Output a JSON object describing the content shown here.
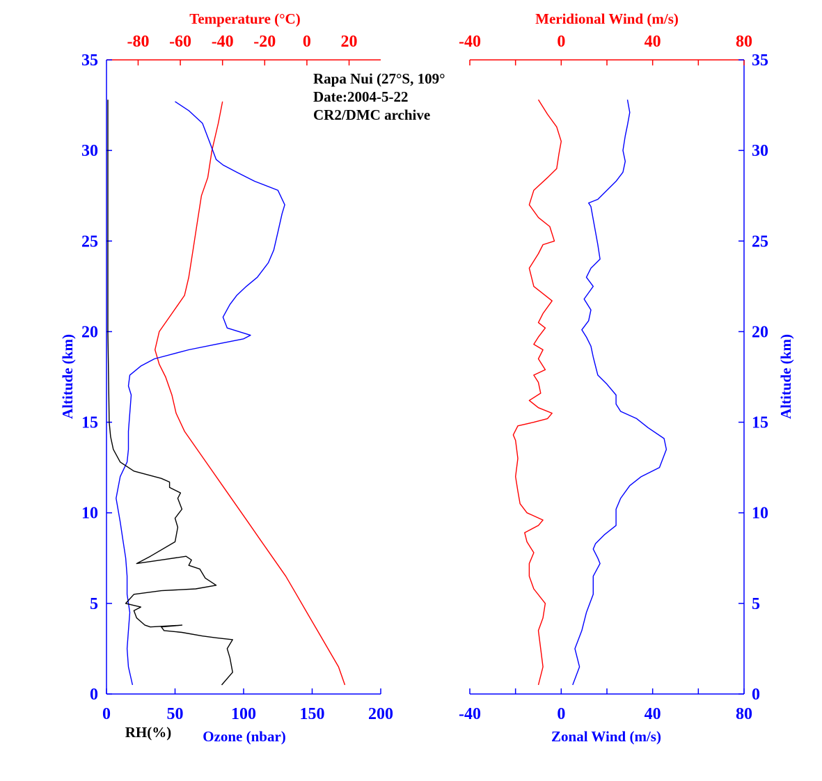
{
  "colors": {
    "blue": "#0000ff",
    "red": "#ff0000",
    "black": "#000000"
  },
  "annotation": {
    "station": "Rapa Nui (27°S, 109°",
    "date": "Date:2004-5-22",
    "archive": "CR2/DMC archive"
  },
  "chart_data": [
    {
      "type": "line",
      "panel": "left",
      "top_axis": {
        "label": "Temperature (°C)",
        "range": [
          -95,
          35
        ],
        "ticks": [
          "-80",
          "-60",
          "-40",
          "-20",
          "0",
          "20"
        ]
      },
      "bottom_axis": {
        "label": "Ozone (nbar)",
        "extra_label": "RH(%)",
        "range": [
          0,
          200
        ],
        "ticks": [
          "0",
          "50",
          "100",
          "150",
          "200"
        ]
      },
      "left_axis": {
        "label": "Altitude (km)",
        "range": [
          0,
          35
        ],
        "ticks": [
          "0",
          "5",
          "10",
          "15",
          "20",
          "25",
          "30",
          "35"
        ]
      },
      "series": [
        {
          "quantity": "Temperature",
          "axis": "top",
          "color": "#ff0000",
          "x": [
            18,
            15,
            10,
            5,
            0,
            -5,
            -10,
            -16,
            -22,
            -28,
            -34,
            -40,
            -46,
            -52,
            -58,
            -62,
            -64,
            -67,
            -70,
            -72,
            -70,
            -64,
            -58,
            -56,
            -54,
            -52,
            -50,
            -47,
            -45,
            -42,
            -40
          ],
          "y": [
            0.5,
            1.5,
            2.5,
            3.5,
            4.5,
            5.5,
            6.5,
            7.5,
            8.5,
            9.5,
            10.5,
            11.5,
            12.5,
            13.5,
            14.5,
            15.5,
            16.5,
            17.5,
            18.2,
            19,
            20,
            21,
            22,
            23,
            24.5,
            26,
            27.5,
            28.5,
            30,
            31.5,
            32.7
          ]
        },
        {
          "quantity": "Ozone",
          "axis": "bottom",
          "color": "#0000ff",
          "x": [
            19,
            16,
            15,
            16,
            17,
            15,
            15,
            14,
            12,
            10,
            7,
            10,
            15,
            16,
            16,
            17,
            18,
            16,
            17,
            25,
            35,
            60,
            80,
            100,
            105,
            88,
            85,
            90,
            95,
            102,
            110,
            118,
            122,
            125,
            128,
            130,
            125,
            108,
            95,
            85,
            80,
            75,
            70,
            60,
            50
          ],
          "y": [
            0.5,
            1.5,
            2.5,
            3.5,
            4.5,
            5.5,
            6.5,
            7.5,
            8.5,
            9.5,
            10.8,
            12,
            12.8,
            13.5,
            14.5,
            15.5,
            16.5,
            17,
            17.6,
            18.1,
            18.5,
            19,
            19.3,
            19.6,
            19.8,
            20.2,
            20.8,
            21.5,
            22,
            22.5,
            23,
            23.8,
            24.5,
            25.5,
            26.5,
            27,
            27.8,
            28.3,
            28.8,
            29.2,
            29.5,
            30.5,
            31.5,
            32.2,
            32.7
          ]
        },
        {
          "quantity": "RH",
          "axis": "bottom",
          "color": "#000000",
          "x": [
            84,
            92,
            90,
            88,
            92,
            80,
            70,
            55,
            42,
            40,
            55,
            32,
            28,
            22,
            20,
            25,
            14,
            20,
            40,
            65,
            80,
            72,
            68,
            60,
            62,
            58,
            40,
            22,
            32,
            50,
            52,
            50,
            55,
            52,
            54,
            46,
            46,
            40,
            20,
            10,
            5,
            3,
            2,
            1,
            1,
            1,
            1
          ],
          "y": [
            0.5,
            1.2,
            2,
            2.5,
            3,
            3.1,
            3.2,
            3.4,
            3.5,
            3.7,
            3.8,
            3.7,
            3.8,
            4.2,
            4.6,
            4.8,
            5,
            5.5,
            5.7,
            5.8,
            6,
            6.4,
            6.9,
            7.1,
            7.4,
            7.6,
            7.4,
            7.2,
            7.6,
            8.4,
            9.2,
            9.7,
            10.2,
            10.8,
            11.1,
            11.4,
            11.7,
            11.9,
            12.3,
            12.8,
            13.5,
            14.2,
            15,
            20,
            25,
            30,
            32.8
          ]
        }
      ]
    },
    {
      "type": "line",
      "panel": "right",
      "top_axis": {
        "label": "Meridional Wind (m/s)",
        "range": [
          -40,
          80
        ],
        "ticks": [
          "-40",
          "0",
          "40",
          "80"
        ]
      },
      "bottom_axis": {
        "label": "Zonal Wind (m/s)",
        "range": [
          -40,
          80
        ],
        "ticks": [
          "-40",
          "0",
          "40",
          "80"
        ]
      },
      "right_axis": {
        "label": "Altitude (km)",
        "range": [
          0,
          35
        ],
        "ticks": [
          "0",
          "5",
          "10",
          "15",
          "20",
          "25",
          "30",
          "35"
        ]
      },
      "series": [
        {
          "quantity": "Meridional Wind",
          "axis": "top",
          "color": "#ff0000",
          "x": [
            -10,
            -8,
            -9,
            -10,
            -8,
            -7,
            -12,
            -14,
            -14,
            -12,
            -15,
            -16,
            -10,
            -8,
            -15,
            -18,
            -19,
            -20,
            -19,
            -20,
            -21,
            -19,
            -12,
            -6,
            -4,
            -10,
            -14,
            -9,
            -10,
            -12,
            -7,
            -10,
            -8,
            -12,
            -10,
            -7,
            -10,
            -8,
            -4,
            -12,
            -14,
            -10,
            -8,
            -3,
            -5,
            -10,
            -14,
            -12,
            -6,
            -2,
            -1,
            0,
            -2,
            -6,
            -10
          ],
          "y": [
            0.5,
            1.5,
            2.5,
            3.5,
            4.2,
            5,
            5.8,
            6.5,
            7.2,
            7.8,
            8.4,
            8.9,
            9.3,
            9.6,
            10,
            10.5,
            11.2,
            12,
            13,
            14,
            14.3,
            14.8,
            15,
            15.2,
            15.5,
            15.8,
            16.2,
            16.6,
            17.2,
            17.6,
            17.9,
            18.5,
            19,
            19.3,
            19.7,
            20.2,
            20.5,
            21,
            21.7,
            22.5,
            23.5,
            24.3,
            24.8,
            25,
            25.8,
            26.3,
            27,
            27.8,
            28.5,
            29,
            29.8,
            30.5,
            31.3,
            32,
            32.8
          ],
          "x_axis_note": "Meridional values plotted on top scale"
        },
        {
          "quantity": "Zonal Wind",
          "axis": "bottom",
          "color": "#0000ff",
          "x": [
            5,
            8,
            6,
            9,
            11,
            14,
            14,
            17,
            16,
            14,
            15,
            19,
            24,
            24,
            26,
            30,
            35,
            43,
            46,
            45,
            38,
            33,
            26,
            24,
            24,
            20,
            16,
            15,
            14,
            13,
            11,
            9,
            12,
            13,
            10,
            14,
            11,
            13,
            17,
            16,
            15,
            14,
            13,
            12,
            16,
            20,
            24,
            27,
            28,
            27,
            28,
            29,
            30,
            29
          ],
          "y": [
            0.5,
            1.5,
            2.5,
            3.5,
            4.5,
            5.5,
            6.5,
            7.2,
            7.5,
            8,
            8.3,
            8.8,
            9.3,
            10.2,
            10.8,
            11.5,
            12,
            12.5,
            13.5,
            14.1,
            14.7,
            15.2,
            15.6,
            16,
            16.5,
            17.1,
            17.6,
            18.1,
            18.6,
            19.2,
            19.7,
            20.1,
            20.6,
            21.2,
            21.8,
            22.5,
            23,
            23.5,
            24,
            24.8,
            25.5,
            26.2,
            26.9,
            27.1,
            27.3,
            27.8,
            28.3,
            28.8,
            29.4,
            30,
            30.8,
            31.4,
            32.1,
            32.8
          ]
        }
      ]
    }
  ]
}
